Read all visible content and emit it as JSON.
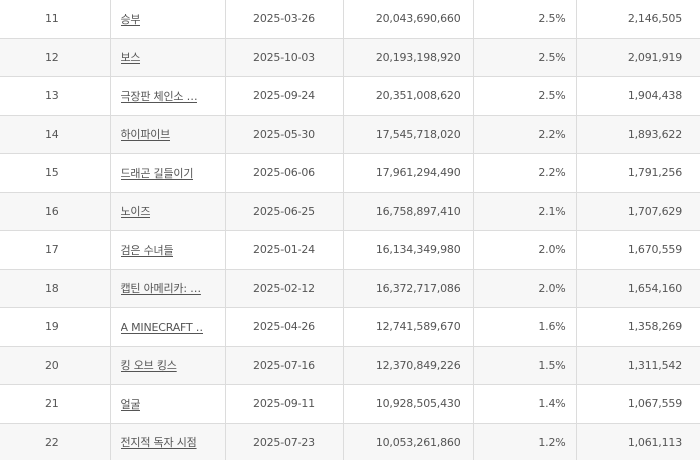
{
  "rows": [
    {
      "rank": "11",
      "title": "승부",
      "release_date": "2025-03-26",
      "sales": "20,043,690,660",
      "share": "2.5%",
      "audience": "2,146,505"
    },
    {
      "rank": "12",
      "title": "보스",
      "release_date": "2025-10-03",
      "sales": "20,193,198,920",
      "share": "2.5%",
      "audience": "2,091,919"
    },
    {
      "rank": "13",
      "title": "극장판 체인소 …",
      "release_date": "2025-09-24",
      "sales": "20,351,008,620",
      "share": "2.5%",
      "audience": "1,904,438"
    },
    {
      "rank": "14",
      "title": "하이파이브",
      "release_date": "2025-05-30",
      "sales": "17,545,718,020",
      "share": "2.2%",
      "audience": "1,893,622"
    },
    {
      "rank": "15",
      "title": "드래곤 길들이기",
      "release_date": "2025-06-06",
      "sales": "17,961,294,490",
      "share": "2.2%",
      "audience": "1,791,256"
    },
    {
      "rank": "16",
      "title": "노이즈",
      "release_date": "2025-06-25",
      "sales": "16,758,897,410",
      "share": "2.1%",
      "audience": "1,707,629"
    },
    {
      "rank": "17",
      "title": "검은 수녀들",
      "release_date": "2025-01-24",
      "sales": "16,134,349,980",
      "share": "2.0%",
      "audience": "1,670,559"
    },
    {
      "rank": "18",
      "title": "캡틴 아메리카: …",
      "release_date": "2025-02-12",
      "sales": "16,372,717,086",
      "share": "2.0%",
      "audience": "1,654,160"
    },
    {
      "rank": "19",
      "title": "A MINECRAFT …",
      "release_date": "2025-04-26",
      "sales": "12,741,589,670",
      "share": "1.6%",
      "audience": "1,358,269"
    },
    {
      "rank": "20",
      "title": "킹 오브 킹스",
      "release_date": "2025-07-16",
      "sales": "12,370,849,226",
      "share": "1.5%",
      "audience": "1,311,542"
    },
    {
      "rank": "21",
      "title": "얼굴",
      "release_date": "2025-09-11",
      "sales": "10,928,505,430",
      "share": "1.4%",
      "audience": "1,067,559"
    },
    {
      "rank": "22",
      "title": "전지적 독자 시점",
      "release_date": "2025-07-23",
      "sales": "10,053,261,860",
      "share": "1.2%",
      "audience": "1,061,113"
    }
  ]
}
